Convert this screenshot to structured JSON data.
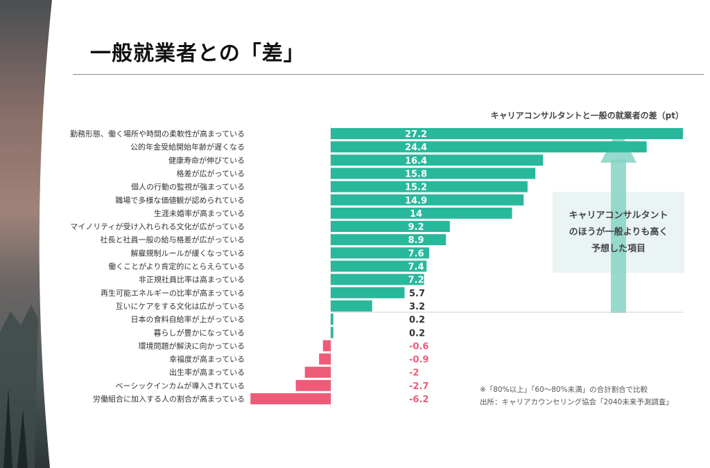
{
  "slide": {
    "title": "一般就業者との「差」"
  },
  "annotation": {
    "lines": [
      "キャリアコンサルタント",
      "のほうが一般よりも高く",
      "予想した項目"
    ]
  },
  "footnotes": {
    "note": "※「80%以上」「60〜80%未満」の合計割合で比較",
    "source": "出所：キャリアカウンセリング協会「2040未来予測調査」"
  },
  "colors": {
    "positive": "#28b89c",
    "negative": "#ee5b78",
    "arrow": "#86d4c4"
  },
  "chart_data": {
    "type": "bar",
    "orientation": "horizontal",
    "title": "キャリアコンサルタントと一般の就業者の差（pt）",
    "xlim": [
      -6.2,
      27.2
    ],
    "categories": [
      "勤務形態、働く場所や時間の柔軟性が高まっている",
      "公的年金受給開始年齢が遅くなる",
      "健康寿命が伸びている",
      "格差が広がっている",
      "個人の行動の監視が強まっている",
      "職場で多様な価値観が認められている",
      "生涯未婚率が高まっている",
      "マイノリティが受け入れられる文化が広がっている",
      "社長と社員一般の給与格差が広がっている",
      "解雇規制ルールが緩くなっている",
      "働くことがより肯定的にとらえらている",
      "非正規社員比率は高まっている",
      "再生可能エネルギーの比率が高まっている",
      "互いにケアをする文化は広がっている",
      "日本の食料自給率が上がっている",
      "暮らしが豊かになっている",
      "環境問題が解決に向かっている",
      "幸福度が高まっている",
      "出生率が高まっている",
      "ベーシックインカムが導入されている",
      "労働組合に加入する人の割合が高まっている"
    ],
    "values": [
      27.2,
      24.4,
      16.4,
      15.8,
      15.2,
      14.9,
      14,
      9.2,
      8.9,
      7.6,
      7.4,
      7.2,
      5.7,
      3.2,
      0.2,
      0.2,
      -0.6,
      -0.9,
      -2,
      -2.7,
      -6.2
    ]
  }
}
